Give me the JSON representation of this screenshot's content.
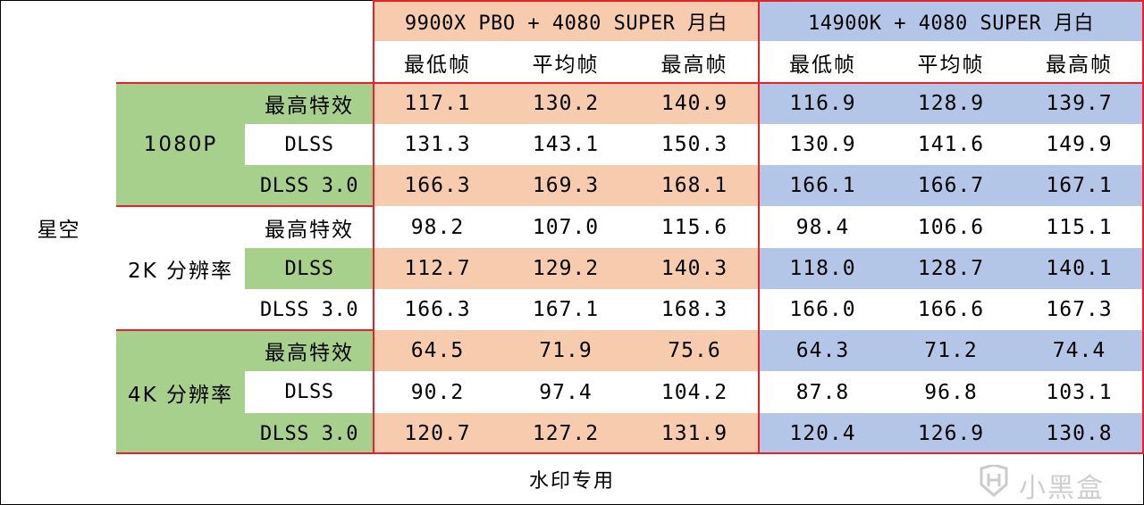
{
  "colors": {
    "orange": "#f7ccae",
    "blue": "#b4c6e7",
    "green": "#a8d08d",
    "white": "#ffffff",
    "red_border": "#e8202a"
  },
  "game": "星空",
  "header": {
    "group_a": "9900X PBO + 4080 SUPER 月白",
    "group_b": "14900K + 4080 SUPER 月白",
    "metrics": [
      "最低帧",
      "平均帧",
      "最高帧",
      "最低帧",
      "平均帧",
      "最高帧"
    ]
  },
  "resolutions": [
    {
      "label": "1080P",
      "highlight": true
    },
    {
      "label": "2K 分辨率",
      "highlight": false
    },
    {
      "label": "4K 分辨率",
      "highlight": true
    }
  ],
  "rows": [
    {
      "setting": "最高特效",
      "a": [
        "117.1",
        "130.2",
        "140.9"
      ],
      "b": [
        "116.9",
        "128.9",
        "139.7"
      ]
    },
    {
      "setting": "DLSS",
      "a": [
        "131.3",
        "143.1",
        "150.3"
      ],
      "b": [
        "130.9",
        "141.6",
        "149.9"
      ]
    },
    {
      "setting": "DLSS 3.0",
      "a": [
        "166.3",
        "169.3",
        "168.1"
      ],
      "b": [
        "166.1",
        "166.7",
        "167.1"
      ]
    },
    {
      "setting": "最高特效",
      "a": [
        "98.2",
        "107.0",
        "115.6"
      ],
      "b": [
        "98.4",
        "106.6",
        "115.1"
      ]
    },
    {
      "setting": "DLSS",
      "a": [
        "112.7",
        "129.2",
        "140.3"
      ],
      "b": [
        "118.0",
        "128.7",
        "140.1"
      ]
    },
    {
      "setting": "DLSS 3.0",
      "a": [
        "166.3",
        "167.1",
        "168.3"
      ],
      "b": [
        "166.0",
        "166.6",
        "167.3"
      ]
    },
    {
      "setting": "最高特效",
      "a": [
        "64.5",
        "71.9",
        "75.6"
      ],
      "b": [
        "64.3",
        "71.2",
        "74.4"
      ]
    },
    {
      "setting": "DLSS",
      "a": [
        "90.2",
        "97.4",
        "104.2"
      ],
      "b": [
        "87.8",
        "96.8",
        "103.1"
      ]
    },
    {
      "setting": "DLSS 3.0",
      "a": [
        "120.7",
        "127.2",
        "131.9"
      ],
      "b": [
        "120.4",
        "126.9",
        "130.8"
      ]
    }
  ],
  "footer": "水印专用",
  "watermark": "小黑盒",
  "logo_icon": "heybox-logo-icon"
}
